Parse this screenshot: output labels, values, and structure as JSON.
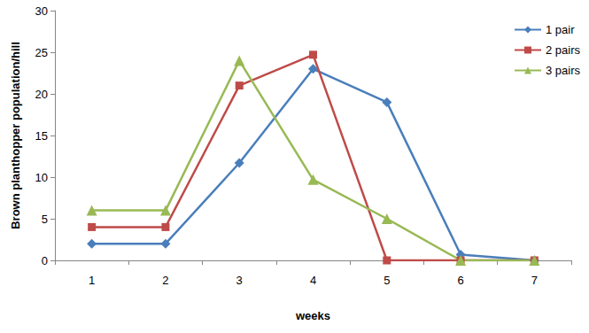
{
  "chart_data": {
    "type": "line",
    "x_label": "weeks",
    "y_label": "Brown planthopper population/hill",
    "categories": [
      "1",
      "2",
      "3",
      "4",
      "5",
      "6",
      "7"
    ],
    "series": [
      {
        "name": "1 pair",
        "color": "#4a7ebb",
        "marker": "diamond",
        "values": [
          2,
          2,
          11.7,
          23,
          19,
          0.7,
          0
        ]
      },
      {
        "name": "2 pairs",
        "color": "#be4b48",
        "marker": "square",
        "values": [
          4,
          4,
          21,
          24.7,
          0,
          0,
          0
        ]
      },
      {
        "name": "3 pairs",
        "color": "#98b954",
        "marker": "triangle",
        "values": [
          6,
          6,
          24,
          9.7,
          5,
          0,
          0
        ]
      }
    ],
    "ylim": [
      0,
      30
    ],
    "yticks": [
      0,
      5,
      10,
      15,
      20,
      25,
      30
    ],
    "grid": false,
    "legend": "top-right"
  }
}
